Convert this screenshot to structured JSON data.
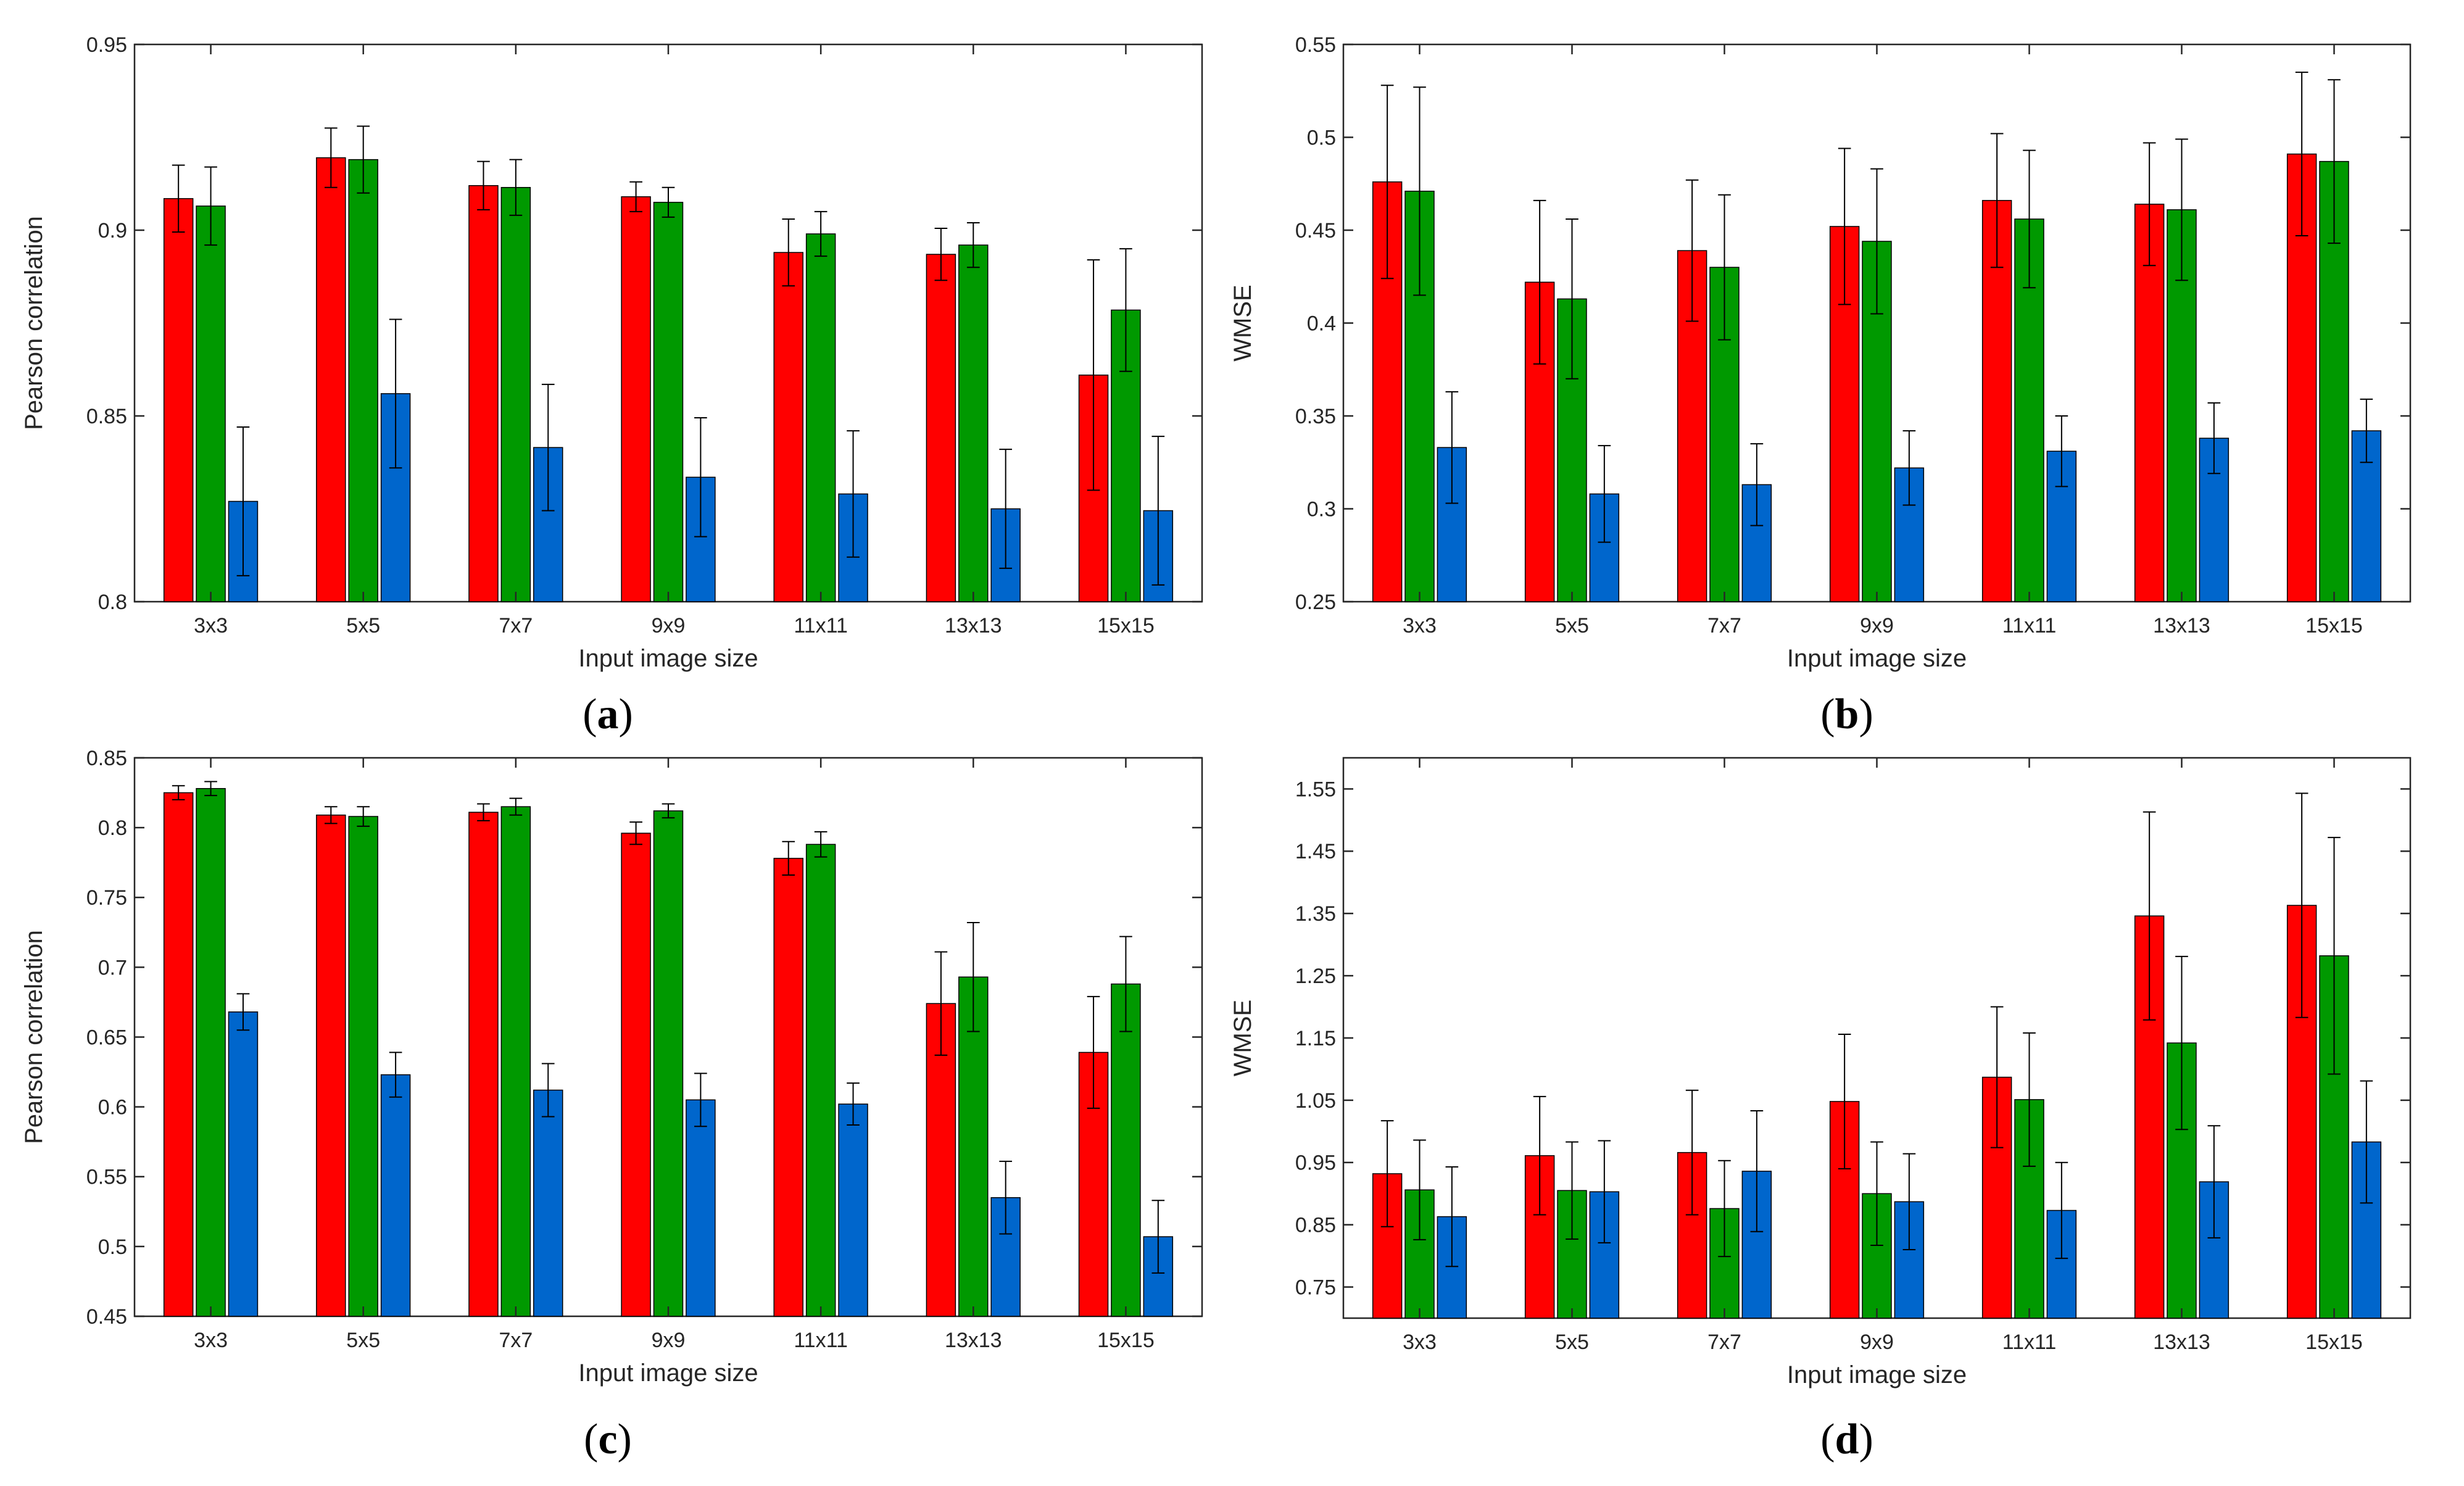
{
  "colors": {
    "red": "#ff0000",
    "green": "#009900",
    "blue": "#0066cc",
    "axis": "#262626",
    "errorbar": "#000000",
    "panel_bg": "#ffffff"
  },
  "chart_data": [
    {
      "type": "bar",
      "panel": "a",
      "caption": {
        "open": "(",
        "letter": "a",
        "close": ")"
      },
      "xlabel": "Input image size",
      "ylabel": "Pearson correlation",
      "ylim": [
        0.8,
        0.95
      ],
      "yticks": [
        0.8,
        0.85,
        0.9,
        0.95
      ],
      "ytick_labels": [
        "0.8",
        "0.85",
        "0.9",
        "0.95"
      ],
      "categories": [
        "3x3",
        "5x5",
        "7x7",
        "9x9",
        "11x11",
        "13x13",
        "15x15"
      ],
      "series": [
        {
          "name": "red",
          "color": "#ff0000",
          "values": [
            0.9085,
            0.9195,
            0.912,
            0.909,
            0.894,
            0.8935,
            0.861
          ],
          "errors": [
            0.009,
            0.008,
            0.0065,
            0.004,
            0.009,
            0.007,
            0.031
          ]
        },
        {
          "name": "green",
          "color": "#009900",
          "values": [
            0.9065,
            0.919,
            0.9115,
            0.9075,
            0.899,
            0.896,
            0.8785
          ],
          "errors": [
            0.0105,
            0.009,
            0.0075,
            0.004,
            0.006,
            0.006,
            0.0165
          ]
        },
        {
          "name": "blue",
          "color": "#0066cc",
          "values": [
            0.827,
            0.856,
            0.8415,
            0.8335,
            0.829,
            0.825,
            0.8245
          ],
          "errors": [
            0.02,
            0.02,
            0.017,
            0.016,
            0.017,
            0.016,
            0.02
          ]
        }
      ]
    },
    {
      "type": "bar",
      "panel": "b",
      "caption": {
        "open": "(",
        "letter": "b",
        "close": ")"
      },
      "xlabel": "Input image size",
      "ylabel": "WMSE",
      "ylim": [
        0.25,
        0.55
      ],
      "yticks": [
        0.25,
        0.3,
        0.35,
        0.4,
        0.45,
        0.5,
        0.55
      ],
      "ytick_labels": [
        "0.25",
        "0.3",
        "0.35",
        "0.4",
        "0.45",
        "0.5",
        "0.55"
      ],
      "categories": [
        "3x3",
        "5x5",
        "7x7",
        "9x9",
        "11x11",
        "13x13",
        "15x15"
      ],
      "series": [
        {
          "name": "red",
          "color": "#ff0000",
          "values": [
            0.476,
            0.422,
            0.439,
            0.452,
            0.466,
            0.464,
            0.491
          ],
          "errors": [
            0.052,
            0.044,
            0.038,
            0.042,
            0.036,
            0.033,
            0.044
          ]
        },
        {
          "name": "green",
          "color": "#009900",
          "values": [
            0.471,
            0.413,
            0.43,
            0.444,
            0.456,
            0.461,
            0.487
          ],
          "errors": [
            0.056,
            0.043,
            0.039,
            0.039,
            0.037,
            0.038,
            0.044
          ]
        },
        {
          "name": "blue",
          "color": "#0066cc",
          "values": [
            0.333,
            0.308,
            0.313,
            0.322,
            0.331,
            0.338,
            0.342
          ],
          "errors": [
            0.03,
            0.026,
            0.022,
            0.02,
            0.019,
            0.019,
            0.017
          ]
        }
      ]
    },
    {
      "type": "bar",
      "panel": "c",
      "caption": {
        "open": "(",
        "letter": "c",
        "close": ")"
      },
      "xlabel": "Input image size",
      "ylabel": "Pearson correlation",
      "ylim": [
        0.45,
        0.85
      ],
      "yticks": [
        0.45,
        0.5,
        0.55,
        0.6,
        0.65,
        0.7,
        0.75,
        0.8,
        0.85
      ],
      "ytick_labels": [
        "0.45",
        "0.5",
        "0.55",
        "0.6",
        "0.65",
        "0.7",
        "0.75",
        "0.8",
        "0.85"
      ],
      "categories": [
        "3x3",
        "5x5",
        "7x7",
        "9x9",
        "11x11",
        "13x13",
        "15x15"
      ],
      "series": [
        {
          "name": "red",
          "color": "#ff0000",
          "values": [
            0.825,
            0.809,
            0.811,
            0.796,
            0.778,
            0.674,
            0.639
          ],
          "errors": [
            0.005,
            0.006,
            0.006,
            0.008,
            0.012,
            0.037,
            0.04
          ]
        },
        {
          "name": "green",
          "color": "#009900",
          "values": [
            0.828,
            0.808,
            0.815,
            0.812,
            0.788,
            0.693,
            0.688
          ],
          "errors": [
            0.005,
            0.007,
            0.006,
            0.005,
            0.009,
            0.039,
            0.034
          ]
        },
        {
          "name": "blue",
          "color": "#0066cc",
          "values": [
            0.668,
            0.623,
            0.612,
            0.605,
            0.602,
            0.535,
            0.507
          ],
          "errors": [
            0.013,
            0.016,
            0.019,
            0.019,
            0.015,
            0.026,
            0.026
          ]
        }
      ]
    },
    {
      "type": "bar",
      "panel": "d",
      "caption": {
        "open": "(",
        "letter": "d",
        "close": ")"
      },
      "xlabel": "Input image size",
      "ylabel": "WMSE",
      "ylim": [
        0.7,
        1.6
      ],
      "yticks": [
        0.75,
        0.85,
        0.95,
        1.05,
        1.15,
        1.25,
        1.35,
        1.45,
        1.55
      ],
      "ytick_labels": [
        "0.75",
        "0.85",
        "0.95",
        "1.05",
        "1.15",
        "1.25",
        "1.35",
        "1.45",
        "1.55"
      ],
      "categories": [
        "3x3",
        "5x5",
        "7x7",
        "9x9",
        "11x11",
        "13x13",
        "15x15"
      ],
      "series": [
        {
          "name": "red",
          "color": "#ff0000",
          "values": [
            0.932,
            0.961,
            0.966,
            1.048,
            1.087,
            1.346,
            1.363
          ],
          "errors": [
            0.085,
            0.095,
            0.1,
            0.108,
            0.113,
            0.167,
            0.18
          ]
        },
        {
          "name": "green",
          "color": "#009900",
          "values": [
            0.906,
            0.905,
            0.876,
            0.9,
            1.051,
            1.142,
            1.282
          ],
          "errors": [
            0.08,
            0.078,
            0.077,
            0.083,
            0.107,
            0.139,
            0.19
          ]
        },
        {
          "name": "blue",
          "color": "#0066cc",
          "values": [
            0.863,
            0.903,
            0.936,
            0.887,
            0.873,
            0.919,
            0.983
          ],
          "errors": [
            0.08,
            0.082,
            0.097,
            0.077,
            0.077,
            0.09,
            0.098
          ]
        }
      ]
    }
  ]
}
